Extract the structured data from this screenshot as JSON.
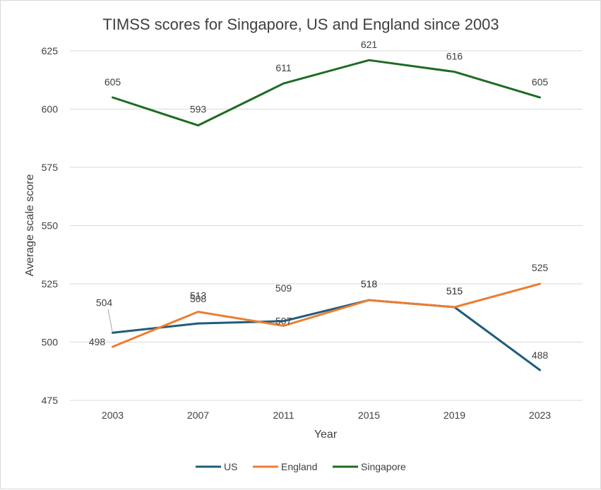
{
  "chart_data": {
    "type": "line",
    "title": "TIMSS scores for Singapore, US and England since 2003",
    "xlabel": "Year",
    "ylabel": "Average scale score",
    "categories": [
      "2003",
      "2007",
      "2011",
      "2015",
      "2019",
      "2023"
    ],
    "ylim": [
      475,
      625
    ],
    "yticks": [
      475,
      500,
      525,
      550,
      575,
      600,
      625
    ],
    "ytick_labels": [
      "475",
      "500",
      "525",
      "550",
      "575",
      "600",
      "625"
    ],
    "grid": true,
    "legend": "bottom",
    "series": [
      {
        "name": "US",
        "color": "#1f5c7a",
        "values": [
          504,
          508,
          509,
          518,
          515,
          488
        ],
        "labels": [
          "504",
          "508",
          "509",
          "518",
          "515",
          "488"
        ]
      },
      {
        "name": "England",
        "color": "#ed7d31",
        "values": [
          498,
          513,
          507,
          518,
          515,
          525
        ],
        "labels": [
          "498",
          "513",
          "507",
          "518",
          "515",
          "525"
        ]
      },
      {
        "name": "Singapore",
        "color": "#1e6b23",
        "values": [
          605,
          593,
          611,
          621,
          616,
          605
        ],
        "labels": [
          "605",
          "593",
          "611",
          "621",
          "616",
          "605"
        ]
      }
    ]
  }
}
